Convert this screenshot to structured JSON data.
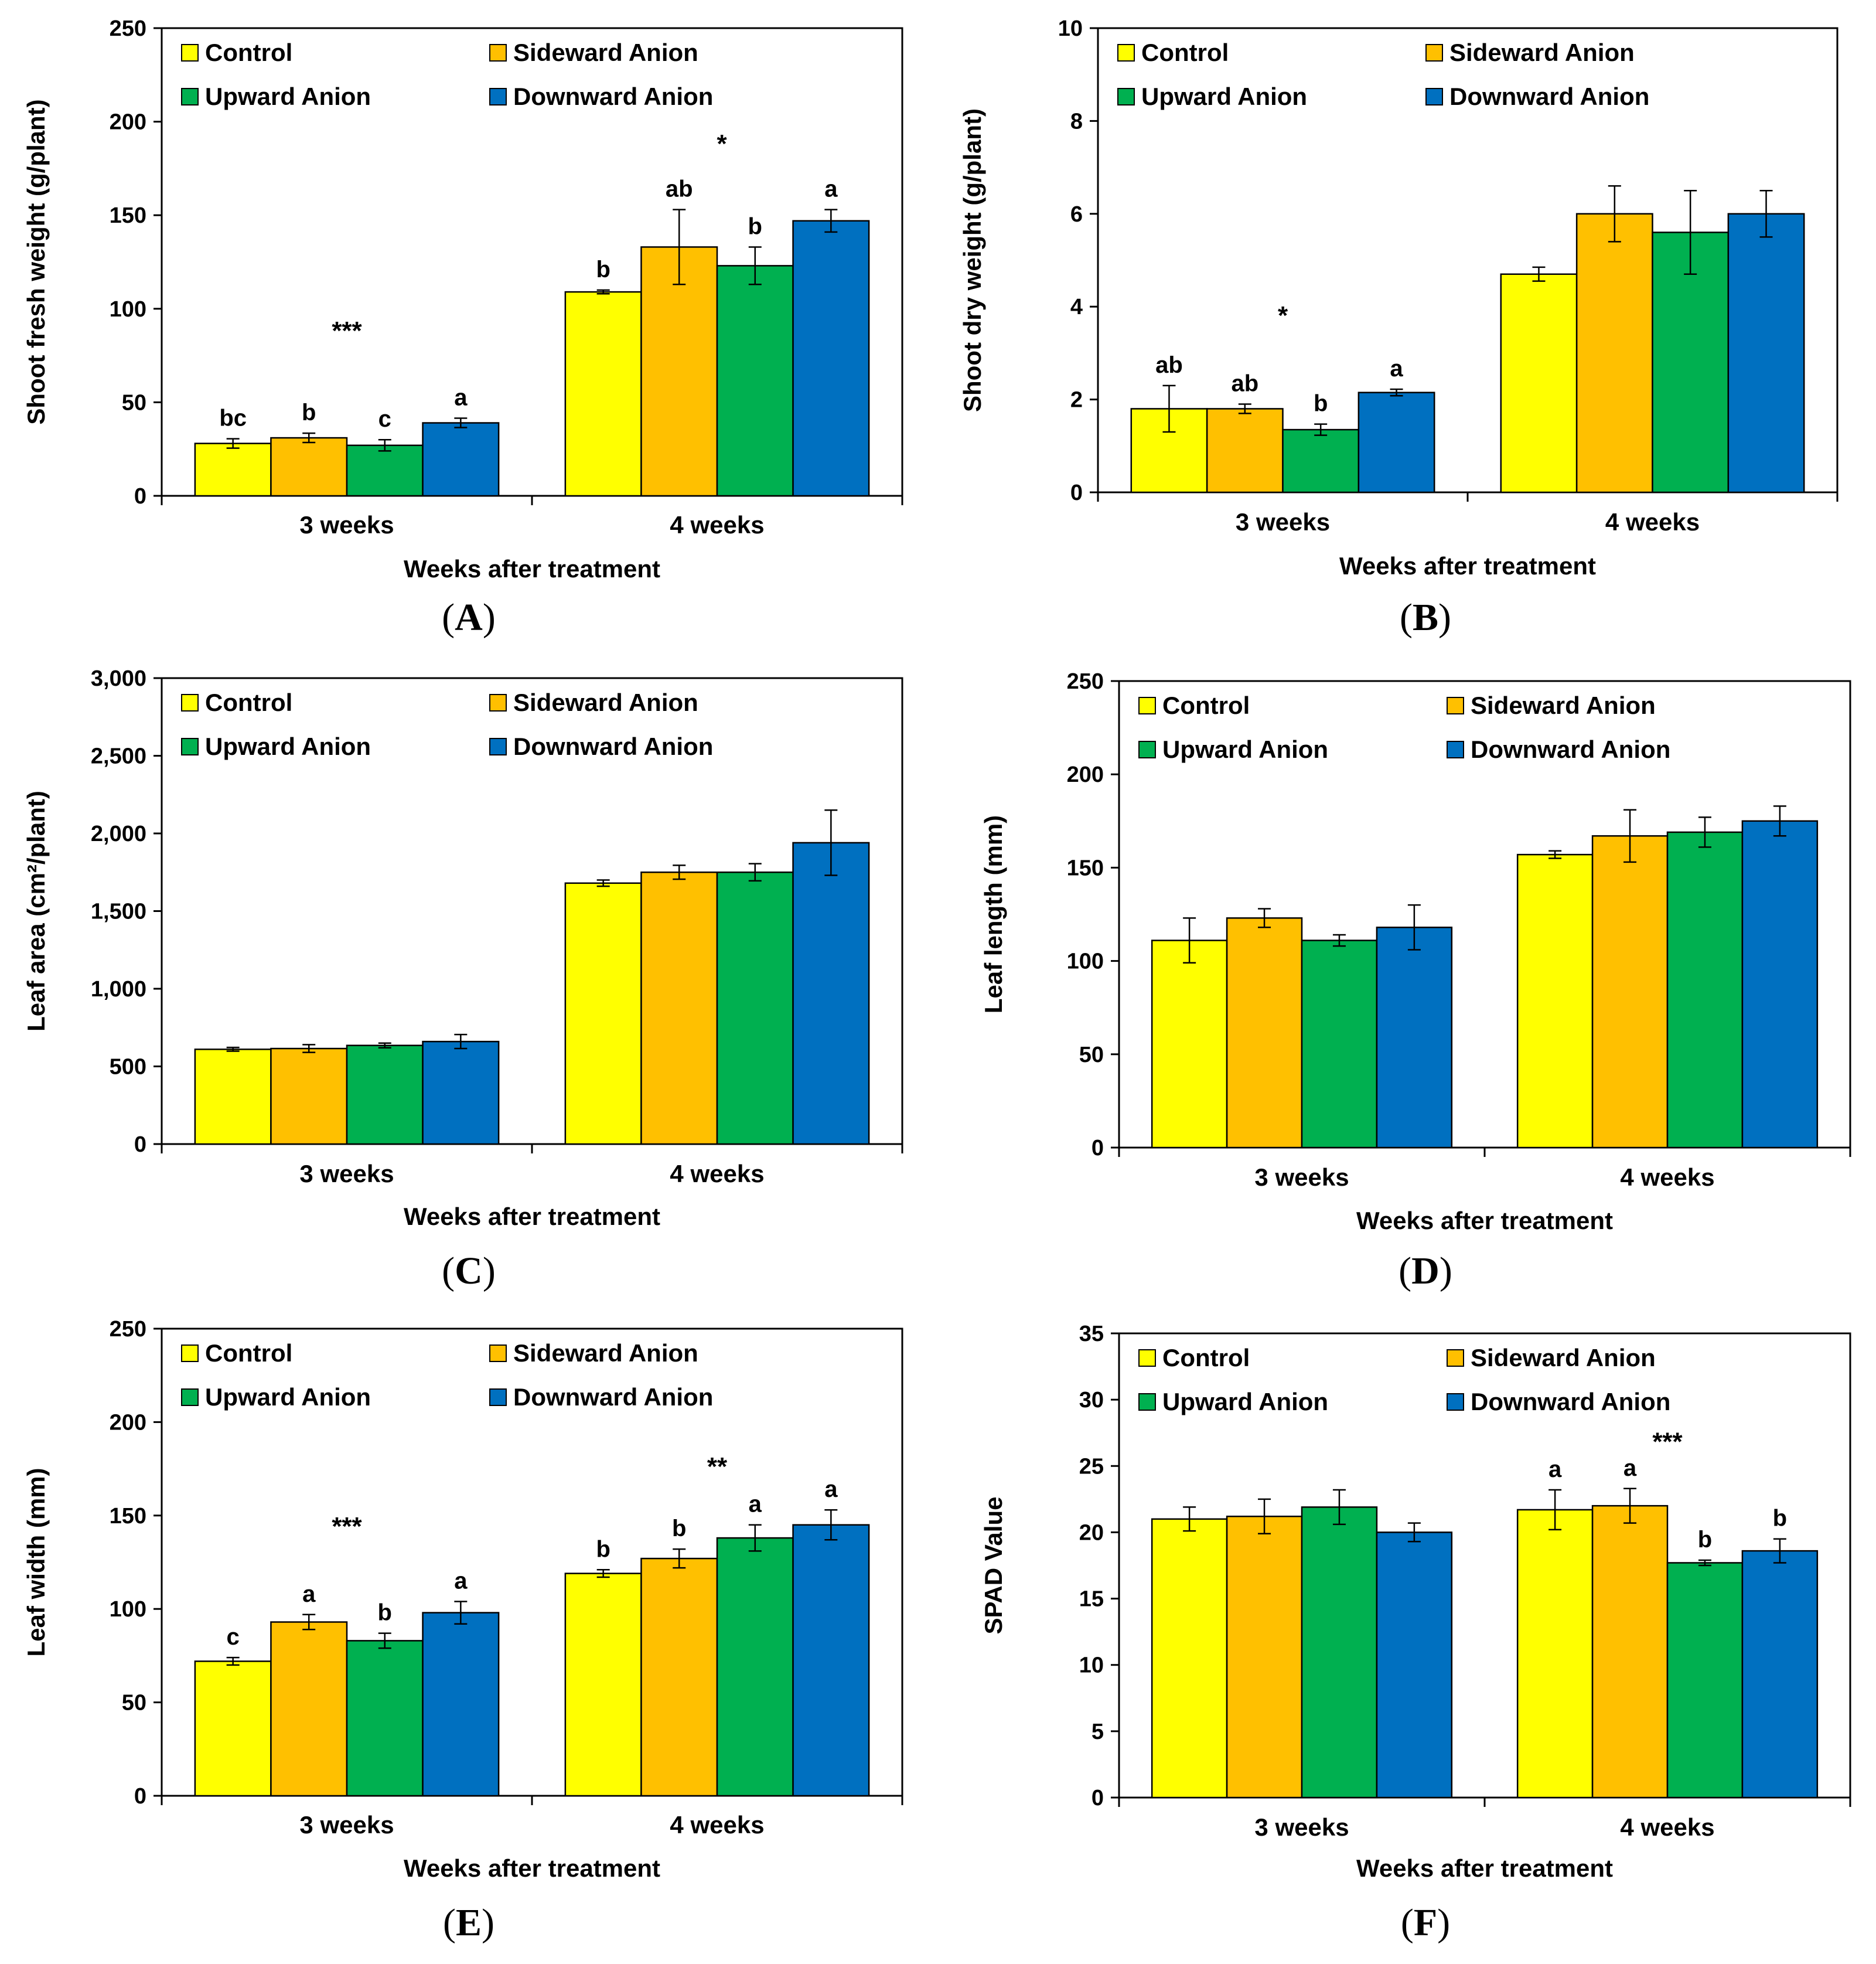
{
  "figure": {
    "colors": {
      "Control": "#ffff00",
      "Sideward Anion": "#ffc000",
      "Upward Anion": "#00b050",
      "Downward Anion": "#0070c0"
    },
    "legend_order": [
      "Control",
      "Sideward Anion",
      "Upward Anion",
      "Downward Anion"
    ]
  },
  "chart_data": [
    {
      "panel": "A",
      "type": "bar",
      "ylabel": "Shoot fresh weight (g/plant)",
      "xlabel": "Weeks after treatment",
      "categories": [
        "3 weeks",
        "4 weeks"
      ],
      "ylim": [
        0,
        250
      ],
      "yticks": [
        0,
        50,
        100,
        150,
        200,
        250
      ],
      "ytick_labels": [
        "0",
        "50",
        "100",
        "150",
        "200",
        "250"
      ],
      "series": [
        {
          "name": "Control",
          "values": [
            28,
            109
          ],
          "errors": [
            2.5,
            1
          ],
          "letters": [
            "bc",
            "b"
          ]
        },
        {
          "name": "Sideward Anion",
          "values": [
            31,
            133
          ],
          "errors": [
            2.5,
            20
          ],
          "letters": [
            "b",
            "ab"
          ]
        },
        {
          "name": "Upward Anion",
          "values": [
            27,
            123
          ],
          "errors": [
            3,
            10
          ],
          "letters": [
            "c",
            "b"
          ]
        },
        {
          "name": "Downward Anion",
          "values": [
            39,
            147
          ],
          "errors": [
            2.5,
            6
          ],
          "letters": [
            "a",
            "a"
          ]
        }
      ],
      "significance": [
        "***",
        "*"
      ],
      "sig_y": [
        88,
        188
      ],
      "legend": [
        "Control",
        "Sideward Anion",
        "Upward Anion",
        "Downward Anion"
      ]
    },
    {
      "panel": "B",
      "type": "bar",
      "ylabel": "Shoot dry weight (g/plant)",
      "xlabel": "Weeks after treatment",
      "categories": [
        "3 weeks",
        "4 weeks"
      ],
      "ylim": [
        0,
        10
      ],
      "yticks": [
        0,
        2,
        4,
        6,
        8,
        10
      ],
      "ytick_labels": [
        "0",
        "2",
        "4",
        "6",
        "8",
        "10"
      ],
      "series": [
        {
          "name": "Control",
          "values": [
            1.8,
            4.7
          ],
          "errors": [
            0.5,
            0.15
          ],
          "letters": [
            "ab",
            ""
          ]
        },
        {
          "name": "Sideward Anion",
          "values": [
            1.8,
            6.0
          ],
          "errors": [
            0.1,
            0.6
          ],
          "letters": [
            "ab",
            ""
          ]
        },
        {
          "name": "Upward Anion",
          "values": [
            1.35,
            5.6
          ],
          "errors": [
            0.12,
            0.9
          ],
          "letters": [
            "b",
            ""
          ]
        },
        {
          "name": "Downward Anion",
          "values": [
            2.15,
            6.0
          ],
          "errors": [
            0.07,
            0.5
          ],
          "letters": [
            "a",
            ""
          ]
        }
      ],
      "significance": [
        "*",
        ""
      ],
      "sig_y": [
        3.8,
        0
      ],
      "legend": [
        "Control",
        "Sideward Anion",
        "Upward Anion",
        "Downward Anion"
      ]
    },
    {
      "panel": "C",
      "type": "bar",
      "ylabel": "Leaf area (cm²/plant)",
      "xlabel": "Weeks after treatment",
      "categories": [
        "3 weeks",
        "4 weeks"
      ],
      "ylim": [
        0,
        3000
      ],
      "yticks": [
        0,
        500,
        1000,
        1500,
        2000,
        2500,
        3000
      ],
      "ytick_labels": [
        "0",
        "500",
        "1,000",
        "1,500",
        "2,000",
        "2,500",
        "3,000"
      ],
      "series": [
        {
          "name": "Control",
          "values": [
            610,
            1680
          ],
          "errors": [
            12,
            20
          ],
          "letters": [
            "",
            ""
          ]
        },
        {
          "name": "Sideward Anion",
          "values": [
            615,
            1750
          ],
          "errors": [
            25,
            45
          ],
          "letters": [
            "",
            ""
          ]
        },
        {
          "name": "Upward Anion",
          "values": [
            635,
            1750
          ],
          "errors": [
            15,
            55
          ],
          "letters": [
            "",
            ""
          ]
        },
        {
          "name": "Downward Anion",
          "values": [
            660,
            1940
          ],
          "errors": [
            45,
            210
          ],
          "letters": [
            "",
            ""
          ]
        }
      ],
      "significance": [
        "",
        ""
      ],
      "sig_y": [
        0,
        0
      ],
      "legend": [
        "Control",
        "Sideward Anion",
        "Upward Anion",
        "Downward Anion"
      ]
    },
    {
      "panel": "D",
      "type": "bar",
      "ylabel": "Leaf length (mm)",
      "xlabel": "Weeks after treatment",
      "categories": [
        "3 weeks",
        "4 weeks"
      ],
      "ylim": [
        0,
        250
      ],
      "yticks": [
        0,
        50,
        100,
        150,
        200,
        250
      ],
      "ytick_labels": [
        "0",
        "50",
        "100",
        "150",
        "200",
        "250"
      ],
      "series": [
        {
          "name": "Control",
          "values": [
            111,
            157
          ],
          "errors": [
            12,
            2
          ],
          "letters": [
            "",
            ""
          ]
        },
        {
          "name": "Sideward Anion",
          "values": [
            123,
            167
          ],
          "errors": [
            5,
            14
          ],
          "letters": [
            "",
            ""
          ]
        },
        {
          "name": "Upward Anion",
          "values": [
            111,
            169
          ],
          "errors": [
            3,
            8
          ],
          "letters": [
            "",
            ""
          ]
        },
        {
          "name": "Downward Anion",
          "values": [
            118,
            175
          ],
          "errors": [
            12,
            8
          ],
          "letters": [
            "",
            ""
          ]
        }
      ],
      "significance": [
        "",
        ""
      ],
      "sig_y": [
        0,
        0
      ],
      "legend": [
        "Control",
        "Sideward Anion",
        "Upward Anion",
        "Downward Anion"
      ]
    },
    {
      "panel": "E",
      "type": "bar",
      "ylabel": "Leaf width (mm)",
      "xlabel": "Weeks after treatment",
      "categories": [
        "3 weeks",
        "4 weeks"
      ],
      "ylim": [
        0,
        250
      ],
      "yticks": [
        0,
        50,
        100,
        150,
        200,
        250
      ],
      "ytick_labels": [
        "0",
        "50",
        "100",
        "150",
        "200",
        "250"
      ],
      "series": [
        {
          "name": "Control",
          "values": [
            72,
            119
          ],
          "errors": [
            2,
            2
          ],
          "letters": [
            "c",
            "b"
          ]
        },
        {
          "name": "Sideward Anion",
          "values": [
            93,
            127
          ],
          "errors": [
            4,
            5
          ],
          "letters": [
            "a",
            "b"
          ]
        },
        {
          "name": "Upward Anion",
          "values": [
            83,
            138
          ],
          "errors": [
            4,
            7
          ],
          "letters": [
            "b",
            "a"
          ]
        },
        {
          "name": "Downward Anion",
          "values": [
            98,
            145
          ],
          "errors": [
            6,
            8
          ],
          "letters": [
            "a",
            "a"
          ]
        }
      ],
      "significance": [
        "***",
        "**"
      ],
      "sig_y": [
        144,
        176
      ],
      "legend": [
        "Control",
        "Sideward Anion",
        "Upward Anion",
        "Downward Anion"
      ]
    },
    {
      "panel": "F",
      "type": "bar",
      "ylabel": "SPAD Value",
      "xlabel": "Weeks after treatment",
      "categories": [
        "3 weeks",
        "4 weeks"
      ],
      "ylim": [
        0,
        35
      ],
      "yticks": [
        0,
        5,
        10,
        15,
        20,
        25,
        30,
        35
      ],
      "ytick_labels": [
        "0",
        "5",
        "10",
        "15",
        "20",
        "25",
        "30",
        "35"
      ],
      "series": [
        {
          "name": "Control",
          "values": [
            21.0,
            21.7
          ],
          "errors": [
            0.9,
            1.5
          ],
          "letters": [
            "",
            "a"
          ]
        },
        {
          "name": "Sideward Anion",
          "values": [
            21.2,
            22.0
          ],
          "errors": [
            1.3,
            1.3
          ],
          "letters": [
            "",
            "a"
          ]
        },
        {
          "name": "Upward Anion",
          "values": [
            21.9,
            17.7
          ],
          "errors": [
            1.3,
            0.2
          ],
          "letters": [
            "",
            "b"
          ]
        },
        {
          "name": "Downward Anion",
          "values": [
            20.0,
            18.6
          ],
          "errors": [
            0.7,
            0.9
          ],
          "letters": [
            "",
            "b"
          ]
        }
      ],
      "significance": [
        "",
        "***"
      ],
      "sig_y": [
        0,
        26.8
      ],
      "legend": [
        "Control",
        "Sideward Anion",
        "Upward Anion",
        "Downward Anion"
      ]
    }
  ],
  "panel_labels": [
    "A",
    "B",
    "C",
    "D",
    "E",
    "F"
  ]
}
